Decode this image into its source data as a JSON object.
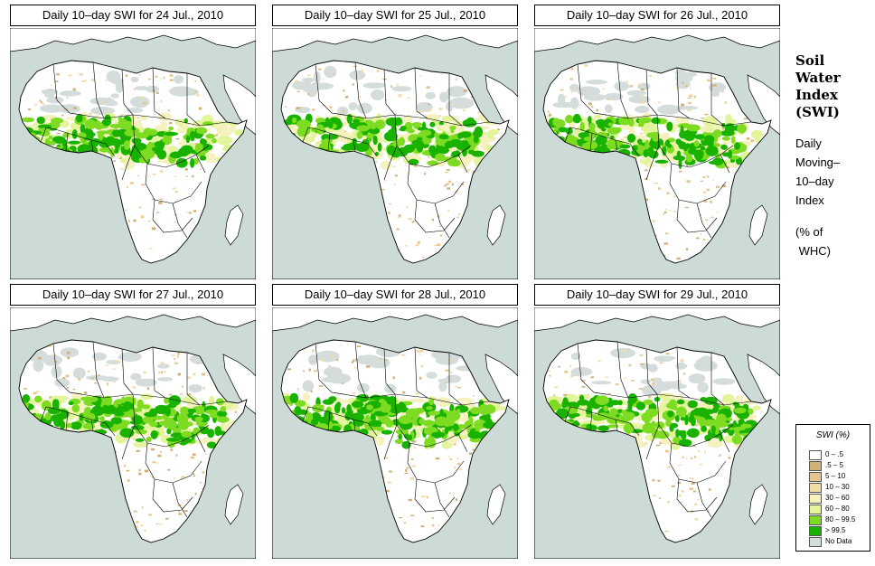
{
  "panels": [
    {
      "title": "Daily 10–day SWI for  24 Jul., 2010",
      "wet_shift": 0
    },
    {
      "title": "Daily 10–day SWI for  25 Jul., 2010",
      "wet_shift": 1
    },
    {
      "title": "Daily 10–day SWI for  26 Jul., 2010",
      "wet_shift": 2
    },
    {
      "title": "Daily 10–day SWI for  27 Jul., 2010",
      "wet_shift": 3
    },
    {
      "title": "Daily 10–day SWI for  28 Jul., 2010",
      "wet_shift": 4
    },
    {
      "title": "Daily 10–day SWI for  29 Jul., 2010",
      "wet_shift": 5
    }
  ],
  "side": {
    "title_lines": [
      "Soil",
      "Water",
      "Index",
      "(SWI)"
    ],
    "sub_lines": [
      "Daily",
      "Moving–",
      "10–day",
      "Index"
    ],
    "unit_lines": [
      "(% of",
      " WHC)"
    ]
  },
  "legend": {
    "title": "SWI (%)",
    "items": [
      {
        "label": "0 – .5",
        "color": "#ffffff"
      },
      {
        "label": ".5 – 5",
        "color": "#d2b07a"
      },
      {
        "label": "5 – 10",
        "color": "#e6c690"
      },
      {
        "label": "10 – 30",
        "color": "#f1dca8"
      },
      {
        "label": "30 – 60",
        "color": "#f6f2c0"
      },
      {
        "label": "60 – 80",
        "color": "#e2f59a"
      },
      {
        "label": "80 – 99.5",
        "color": "#7ddc22"
      },
      {
        "label": "> 99.5",
        "color": "#19b200"
      },
      {
        "label": "No Data",
        "color": "#d4dcdc"
      }
    ]
  },
  "colors": {
    "ocean": "#cddbd6",
    "land": "#ffffff",
    "border": "#000000"
  }
}
